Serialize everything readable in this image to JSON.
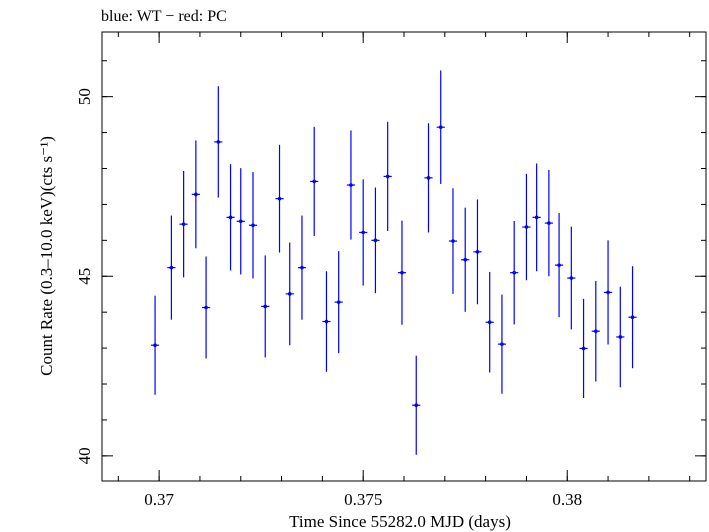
{
  "chart_data": {
    "type": "scatter",
    "title": "blue: WT − red: PC",
    "xlabel": "Time Since 55282.0 MJD (days)",
    "ylabel": "Count Rate (0.3–10.0 keV)(cts s⁻¹)",
    "xlim": [
      0.3686,
      0.3834
    ],
    "ylim": [
      39.3,
      51.8
    ],
    "x_ticks": [
      {
        "value": 0.37,
        "label": "0.37"
      },
      {
        "value": 0.375,
        "label": "0.375"
      },
      {
        "value": 0.38,
        "label": "0.38"
      }
    ],
    "y_ticks": [
      {
        "value": 40,
        "label": "40"
      },
      {
        "value": 45,
        "label": "45"
      },
      {
        "value": 50,
        "label": "50"
      }
    ],
    "grid": false,
    "series": [
      {
        "color": "#0000ff",
        "x_err": 0.0001,
        "points": [
          {
            "x": 0.3699,
            "y": 43.08,
            "yerr": 1.38
          },
          {
            "x": 0.3703,
            "y": 45.24,
            "yerr": 1.45
          },
          {
            "x": 0.3706,
            "y": 46.45,
            "yerr": 1.48
          },
          {
            "x": 0.3709,
            "y": 47.28,
            "yerr": 1.5
          },
          {
            "x": 0.37115,
            "y": 44.13,
            "yerr": 1.42
          },
          {
            "x": 0.37145,
            "y": 48.74,
            "yerr": 1.55
          },
          {
            "x": 0.37175,
            "y": 46.64,
            "yerr": 1.48
          },
          {
            "x": 0.372,
            "y": 46.53,
            "yerr": 1.48
          },
          {
            "x": 0.3723,
            "y": 46.42,
            "yerr": 1.48
          },
          {
            "x": 0.3726,
            "y": 44.16,
            "yerr": 1.42
          },
          {
            "x": 0.37295,
            "y": 47.16,
            "yerr": 1.5
          },
          {
            "x": 0.3732,
            "y": 44.51,
            "yerr": 1.43
          },
          {
            "x": 0.3735,
            "y": 45.24,
            "yerr": 1.45
          },
          {
            "x": 0.3738,
            "y": 47.64,
            "yerr": 1.52
          },
          {
            "x": 0.3741,
            "y": 43.74,
            "yerr": 1.4
          },
          {
            "x": 0.3744,
            "y": 44.28,
            "yerr": 1.42
          },
          {
            "x": 0.3747,
            "y": 47.54,
            "yerr": 1.52
          },
          {
            "x": 0.375,
            "y": 46.22,
            "yerr": 1.48
          },
          {
            "x": 0.3753,
            "y": 46.0,
            "yerr": 1.47
          },
          {
            "x": 0.3756,
            "y": 47.78,
            "yerr": 1.52
          },
          {
            "x": 0.37595,
            "y": 45.1,
            "yerr": 1.45
          },
          {
            "x": 0.3763,
            "y": 41.41,
            "yerr": 1.38
          },
          {
            "x": 0.3766,
            "y": 47.74,
            "yerr": 1.52
          },
          {
            "x": 0.3769,
            "y": 49.15,
            "yerr": 1.58
          },
          {
            "x": 0.3772,
            "y": 45.98,
            "yerr": 1.47
          },
          {
            "x": 0.3775,
            "y": 45.46,
            "yerr": 1.45
          },
          {
            "x": 0.3778,
            "y": 45.68,
            "yerr": 1.46
          },
          {
            "x": 0.3781,
            "y": 43.72,
            "yerr": 1.4
          },
          {
            "x": 0.3784,
            "y": 43.11,
            "yerr": 1.38
          },
          {
            "x": 0.3787,
            "y": 45.1,
            "yerr": 1.44
          },
          {
            "x": 0.379,
            "y": 46.37,
            "yerr": 1.48
          },
          {
            "x": 0.37925,
            "y": 46.64,
            "yerr": 1.5
          },
          {
            "x": 0.37955,
            "y": 46.48,
            "yerr": 1.48
          },
          {
            "x": 0.3798,
            "y": 45.31,
            "yerr": 1.45
          },
          {
            "x": 0.3801,
            "y": 44.95,
            "yerr": 1.43
          },
          {
            "x": 0.3804,
            "y": 42.99,
            "yerr": 1.38
          },
          {
            "x": 0.3807,
            "y": 43.47,
            "yerr": 1.4
          },
          {
            "x": 0.381,
            "y": 44.55,
            "yerr": 1.45
          },
          {
            "x": 0.3813,
            "y": 43.31,
            "yerr": 1.4
          },
          {
            "x": 0.3816,
            "y": 43.86,
            "yerr": 1.42
          }
        ]
      }
    ]
  }
}
